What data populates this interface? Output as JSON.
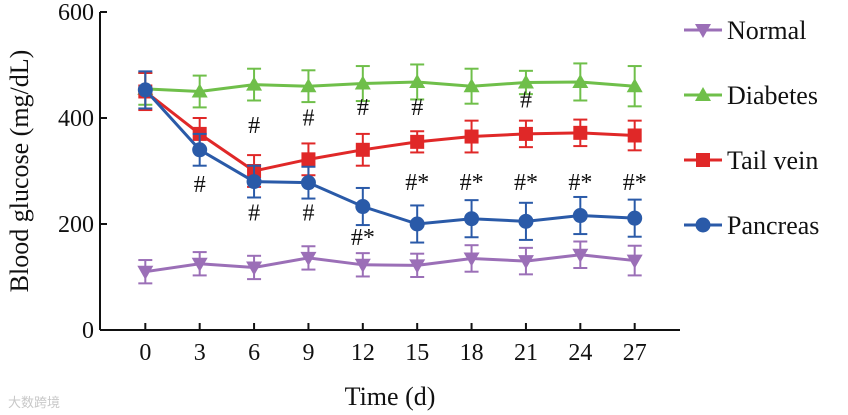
{
  "chart_data": {
    "type": "line",
    "xlabel": "Time (d)",
    "ylabel": "Blood glucose (mg/dL)",
    "x": [
      0,
      3,
      6,
      9,
      12,
      15,
      18,
      21,
      24,
      27
    ],
    "xlim": [
      -2.5,
      29.5
    ],
    "ylim": [
      0,
      600
    ],
    "yticks": [
      0,
      200,
      400,
      600
    ],
    "grid": false,
    "legend_position": "right",
    "series": [
      {
        "name": "Normal",
        "marker": "triangle-down",
        "color": "#9b6fb7",
        "values": [
          110,
          125,
          118,
          136,
          123,
          122,
          135,
          130,
          142,
          131
        ],
        "errors": [
          22,
          22,
          22,
          22,
          22,
          22,
          25,
          25,
          25,
          28
        ]
      },
      {
        "name": "Diabetes",
        "marker": "triangle-up",
        "color": "#6fbf4a",
        "values": [
          455,
          450,
          463,
          460,
          465,
          468,
          460,
          467,
          468,
          460
        ],
        "errors": [
          30,
          30,
          30,
          30,
          33,
          33,
          33,
          22,
          35,
          38
        ]
      },
      {
        "name": "Tail vein",
        "marker": "square",
        "color": "#e02828",
        "values": [
          450,
          370,
          300,
          322,
          340,
          355,
          365,
          370,
          372,
          367
        ],
        "errors": [
          35,
          30,
          30,
          30,
          30,
          20,
          30,
          25,
          25,
          28
        ]
      },
      {
        "name": "Pancreas",
        "marker": "circle",
        "color": "#2a5aa8",
        "values": [
          453,
          340,
          280,
          278,
          233,
          200,
          210,
          205,
          216,
          211
        ],
        "errors": [
          35,
          30,
          30,
          30,
          35,
          35,
          35,
          35,
          35,
          35
        ]
      }
    ],
    "annotations": [
      {
        "x": 3,
        "y": 260,
        "text": "#"
      },
      {
        "x": 6,
        "y": 372,
        "text": "#"
      },
      {
        "x": 6,
        "y": 207,
        "text": "#"
      },
      {
        "x": 9,
        "y": 386,
        "text": "#"
      },
      {
        "x": 9,
        "y": 207,
        "text": "#"
      },
      {
        "x": 12,
        "y": 406,
        "text": "#"
      },
      {
        "x": 12,
        "y": 160,
        "text": "#*"
      },
      {
        "x": 15,
        "y": 406,
        "text": "#"
      },
      {
        "x": 15,
        "y": 264,
        "text": "#*"
      },
      {
        "x": 18,
        "y": 264,
        "text": "#*"
      },
      {
        "x": 21,
        "y": 420,
        "text": "#"
      },
      {
        "x": 21,
        "y": 264,
        "text": "#*"
      },
      {
        "x": 24,
        "y": 264,
        "text": "#*"
      },
      {
        "x": 27,
        "y": 264,
        "text": "#*"
      }
    ]
  },
  "watermark": "大数跨境"
}
